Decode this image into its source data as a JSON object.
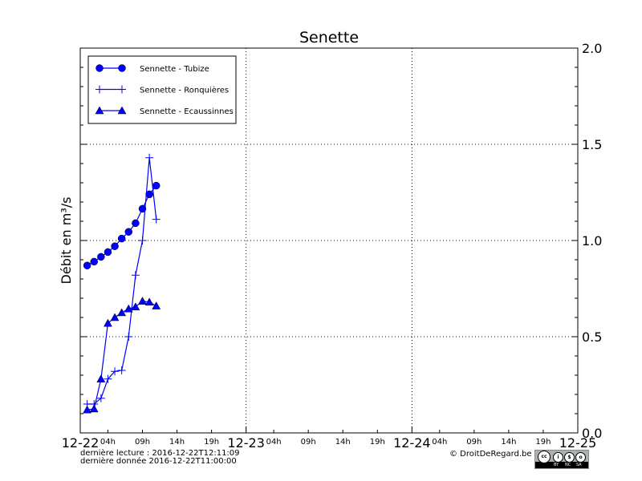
{
  "chart_data": {
    "type": "line",
    "title": "Senette",
    "ylabel": "Débit en m³/s",
    "xlabel": "",
    "xlim": [
      "2016-12-22 00:00",
      "2016-12-25 00:00"
    ],
    "ylim": [
      0.0,
      2.0
    ],
    "grid": true,
    "legend_position": "top-left",
    "x_major_ticks": [
      "12-22",
      "12-23",
      "12-24",
      "12-25"
    ],
    "x_minor_ticks": [
      "04h",
      "09h",
      "14h",
      "19h"
    ],
    "y_ticks": [
      "0.0",
      "0.5",
      "1.0",
      "1.5",
      "2.0"
    ],
    "x": [
      "2016-12-22 01:00",
      "2016-12-22 02:00",
      "2016-12-22 03:00",
      "2016-12-22 04:00",
      "2016-12-22 05:00",
      "2016-12-22 06:00",
      "2016-12-22 07:00",
      "2016-12-22 08:00",
      "2016-12-22 09:00",
      "2016-12-22 10:00",
      "2016-12-22 11:00"
    ],
    "series": [
      {
        "name": "Sennette - Tubize",
        "marker": "circle",
        "color": "#0000ff",
        "values": [
          0.87,
          0.89,
          0.915,
          0.94,
          0.97,
          1.01,
          1.045,
          1.09,
          1.165,
          1.24,
          1.285
        ]
      },
      {
        "name": "Sennette - Ronquières",
        "marker": "plus",
        "color": "#0000ff",
        "values": [
          0.15,
          0.15,
          0.18,
          0.28,
          0.32,
          0.325,
          0.5,
          0.82,
          1.0,
          1.43,
          1.11
        ]
      },
      {
        "name": "Sennette - Ecaussinnes",
        "marker": "triangle",
        "color": "#0000ff",
        "values": [
          0.12,
          0.125,
          0.28,
          0.57,
          0.6,
          0.625,
          0.645,
          0.655,
          0.685,
          0.68,
          0.66
        ]
      }
    ]
  },
  "footer": {
    "last_read": "dernière lecture : 2016-12-22T12:11:09",
    "last_data": "dernière donnée  2016-12-22T11:00:00",
    "copyright": "© DroitDeRegard.be",
    "license_labels": [
      "cc",
      "BY",
      "NC",
      "SA"
    ]
  }
}
